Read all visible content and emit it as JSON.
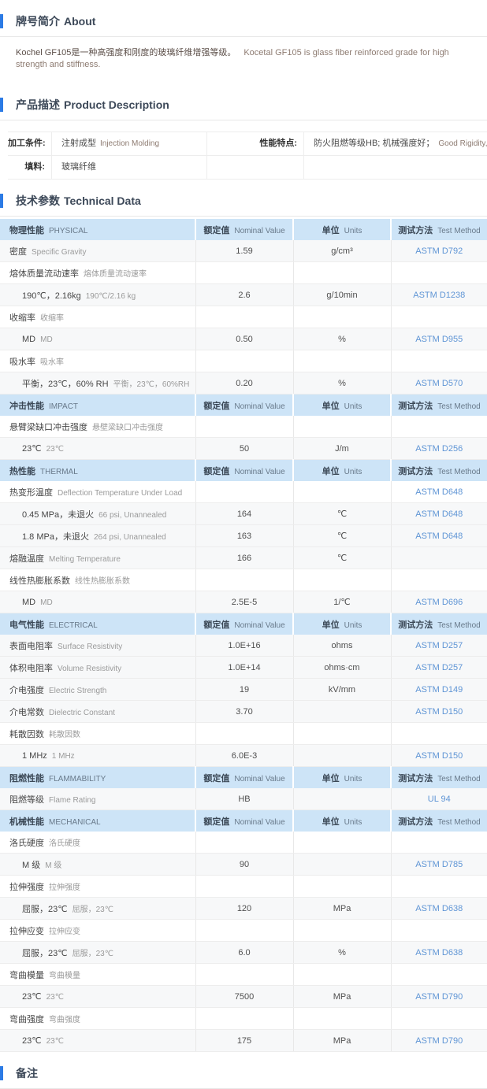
{
  "colors": {
    "accent_blue": "#2c7be5",
    "table_header_bg": "#cde4f7",
    "method_link": "#5f95d5",
    "stripe": "#f7f8f9"
  },
  "page": {
    "about": {
      "title_zh": "牌号简介",
      "title_en": "About",
      "body_zh": "Kochel GF105是一种高强度和刚度的玻璃纤维增强等级。",
      "body_en": "Kocetal GF105 is glass fiber reinforced grade for high strength and stiffness."
    },
    "description": {
      "title_zh": "产品描述",
      "title_en": "Product Description",
      "fields": [
        {
          "label": "加工条件:",
          "value_zh": "注射成型",
          "value_en": "Injection Molding"
        },
        {
          "label": "性能特点:",
          "value_zh": "防火阻燃等级HB; 机械强度好；",
          "value_en": "Good Rigidity,HB"
        },
        {
          "label": "填料:",
          "value_zh": "玻璃纤维",
          "value_en": ""
        }
      ]
    },
    "technical": {
      "title_zh": "技术参数",
      "title_en": "Technical Data",
      "columns": {
        "nominal_zh": "额定值",
        "nominal_en": "Nominal Value",
        "units_zh": "单位",
        "units_en": "Units",
        "method_zh": "测试方法",
        "method_en": "Test Method"
      },
      "sections": [
        {
          "name_zh": "物理性能",
          "name_en": "PHYSICAL",
          "rows": [
            {
              "zh": "密度",
              "en": "Specific Gravity",
              "indent": false,
              "value": "1.59",
              "unit": "g/cm³",
              "method": "ASTM D792"
            },
            {
              "zh": "熔体质量流动速率",
              "en": "熔体质量流动速率",
              "indent": false,
              "value": "",
              "unit": "",
              "method": ""
            },
            {
              "zh": "190℃，2.16kg",
              "en": "190℃/2.16 kg",
              "indent": true,
              "value": "2.6",
              "unit": "g/10min",
              "method": "ASTM D1238"
            },
            {
              "zh": "收缩率",
              "en": "收缩率",
              "indent": false,
              "value": "",
              "unit": "",
              "method": ""
            },
            {
              "zh": "MD",
              "en": "MD",
              "indent": true,
              "value": "0.50",
              "unit": "%",
              "method": "ASTM D955"
            },
            {
              "zh": "吸水率",
              "en": "吸水率",
              "indent": false,
              "value": "",
              "unit": "",
              "method": ""
            },
            {
              "zh": "平衡，23℃，60% RH",
              "en": "平衡，23℃，60%RH",
              "indent": true,
              "value": "0.20",
              "unit": "%",
              "method": "ASTM D570"
            }
          ]
        },
        {
          "name_zh": "冲击性能",
          "name_en": "IMPACT",
          "rows": [
            {
              "zh": "悬臂梁缺口冲击强度",
              "en": "悬壁梁缺口冲击强度",
              "indent": false,
              "value": "",
              "unit": "",
              "method": ""
            },
            {
              "zh": "23℃",
              "en": "23℃",
              "indent": true,
              "value": "50",
              "unit": "J/m",
              "method": "ASTM D256"
            }
          ]
        },
        {
          "name_zh": "热性能",
          "name_en": "THERMAL",
          "rows": [
            {
              "zh": "热变形温度",
              "en": "Deflection Temperature Under Load",
              "indent": false,
              "value": "",
              "unit": "",
              "method": "ASTM D648"
            },
            {
              "zh": "0.45 MPa，未退火",
              "en": "66 psi, Unannealed",
              "indent": true,
              "value": "164",
              "unit": "℃",
              "method": "ASTM D648"
            },
            {
              "zh": "1.8 MPa，未退火",
              "en": "264 psi, Unannealed",
              "indent": true,
              "value": "163",
              "unit": "℃",
              "method": "ASTM D648"
            },
            {
              "zh": "熔融温度",
              "en": "Melting Temperature",
              "indent": false,
              "value": "166",
              "unit": "℃",
              "method": ""
            },
            {
              "zh": "线性热膨胀系数",
              "en": "线性热膨胀系数",
              "indent": false,
              "value": "",
              "unit": "",
              "method": ""
            },
            {
              "zh": "MD",
              "en": "MD",
              "indent": true,
              "value": "2.5E-5",
              "unit": "1/℃",
              "method": "ASTM D696"
            }
          ]
        },
        {
          "name_zh": "电气性能",
          "name_en": "ELECTRICAL",
          "rows": [
            {
              "zh": "表面电阻率",
              "en": "Surface Resistivity",
              "indent": false,
              "value": "1.0E+16",
              "unit": "ohms",
              "method": "ASTM D257"
            },
            {
              "zh": "体积电阻率",
              "en": "Volume Resistivity",
              "indent": false,
              "value": "1.0E+14",
              "unit": "ohms·cm",
              "method": "ASTM D257"
            },
            {
              "zh": "介电强度",
              "en": "Electric Strength",
              "indent": false,
              "value": "19",
              "unit": "kV/mm",
              "method": "ASTM D149"
            },
            {
              "zh": "介电常数",
              "en": "Dielectric Constant",
              "indent": false,
              "value": "3.70",
              "unit": "",
              "method": "ASTM D150"
            },
            {
              "zh": "耗散因数",
              "en": "耗散因数",
              "indent": false,
              "value": "",
              "unit": "",
              "method": ""
            },
            {
              "zh": "1 MHz",
              "en": "1 MHz",
              "indent": true,
              "value": "6.0E-3",
              "unit": "",
              "method": "ASTM D150"
            }
          ]
        },
        {
          "name_zh": "阻燃性能",
          "name_en": "FLAMMABILITY",
          "rows": [
            {
              "zh": "阻燃等级",
              "en": "Flame Rating",
              "indent": false,
              "value": "HB",
              "unit": "",
              "method": "UL 94"
            }
          ]
        },
        {
          "name_zh": "机械性能",
          "name_en": "MECHANICAL",
          "rows": [
            {
              "zh": "洛氏硬度",
              "en": "洛氏硬度",
              "indent": false,
              "value": "",
              "unit": "",
              "method": ""
            },
            {
              "zh": "M 级",
              "en": "M 级",
              "indent": true,
              "value": "90",
              "unit": "",
              "method": "ASTM D785"
            },
            {
              "zh": "拉伸强度",
              "en": "拉伸强度",
              "indent": false,
              "value": "",
              "unit": "",
              "method": ""
            },
            {
              "zh": "屈服，23℃",
              "en": "屈服，23℃",
              "indent": true,
              "value": "120",
              "unit": "MPa",
              "method": "ASTM D638"
            },
            {
              "zh": "拉伸应变",
              "en": "拉伸应变",
              "indent": false,
              "value": "",
              "unit": "",
              "method": ""
            },
            {
              "zh": "屈服，23℃",
              "en": "屈服，23℃",
              "indent": true,
              "value": "6.0",
              "unit": "%",
              "method": "ASTM D638"
            },
            {
              "zh": "弯曲模量",
              "en": "弯曲模量",
              "indent": false,
              "value": "",
              "unit": "",
              "method": ""
            },
            {
              "zh": "23℃",
              "en": "23℃",
              "indent": true,
              "value": "7500",
              "unit": "MPa",
              "method": "ASTM D790"
            },
            {
              "zh": "弯曲强度",
              "en": "弯曲强度",
              "indent": false,
              "value": "",
              "unit": "",
              "method": ""
            },
            {
              "zh": "23℃",
              "en": "23℃",
              "indent": true,
              "value": "175",
              "unit": "MPa",
              "method": "ASTM D790"
            }
          ]
        }
      ]
    },
    "remarks": {
      "title_zh": "备注"
    }
  }
}
